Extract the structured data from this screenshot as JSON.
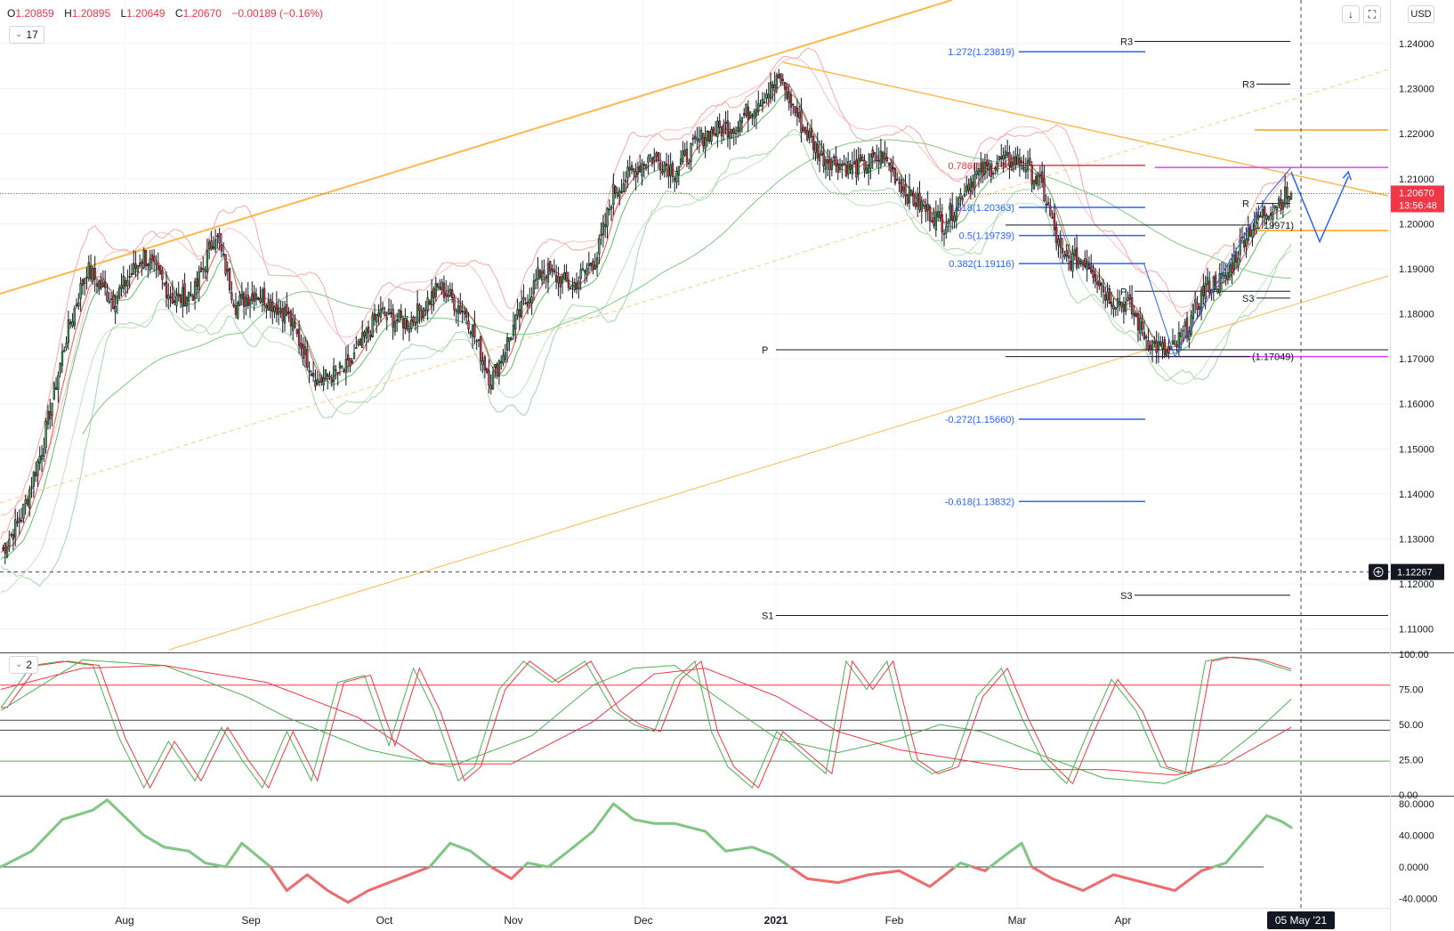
{
  "ohlc": {
    "o": "1.20859",
    "h": "1.20895",
    "l": "1.20649",
    "c": "1.20670",
    "chg": "−0.00189 (−0.16%)"
  },
  "toolbar": {
    "currency": "USD",
    "main_indicator": "17",
    "osc_indicator": "2"
  },
  "colors": {
    "up": "#4caf50",
    "down": "#f23645",
    "trend": "#ffb74d",
    "fib": "#2962ff",
    "magenta": "#e040fb"
  },
  "chart_data": [
    {
      "type": "candlestick",
      "pane": "main",
      "price_axis": {
        "ticks": [
          "1.24000",
          "1.23000",
          "1.22000",
          "1.21000",
          "1.20000",
          "1.19000",
          "1.18000",
          "1.17000",
          "1.16000",
          "1.15000",
          "1.14000",
          "1.13000",
          "1.12000",
          "1.11000"
        ],
        "range": [
          1.105,
          1.2485
        ]
      },
      "time_axis": {
        "ticks": [
          "Aug",
          "Sep",
          "Oct",
          "Nov",
          "Dec",
          "2021",
          "Feb",
          "Mar",
          "Apr"
        ],
        "current_date_label": "05 May '21"
      },
      "last_price": {
        "value": "1.20670",
        "countdown": "13:56:48"
      },
      "crosshair_price": "1.12267",
      "anchors": [
        [
          0,
          1.127
        ],
        [
          10,
          1.135
        ],
        [
          20,
          1.15
        ],
        [
          32,
          1.175
        ],
        [
          42,
          1.19
        ],
        [
          55,
          1.183
        ],
        [
          70,
          1.193
        ],
        [
          85,
          1.183
        ],
        [
          95,
          1.185
        ],
        [
          105,
          1.198
        ],
        [
          115,
          1.182
        ],
        [
          125,
          1.185
        ],
        [
          140,
          1.18
        ],
        [
          155,
          1.165
        ],
        [
          170,
          1.168
        ],
        [
          185,
          1.18
        ],
        [
          200,
          1.178
        ],
        [
          215,
          1.186
        ],
        [
          228,
          1.18
        ],
        [
          240,
          1.165
        ],
        [
          252,
          1.178
        ],
        [
          265,
          1.19
        ],
        [
          280,
          1.186
        ],
        [
          292,
          1.193
        ],
        [
          300,
          1.207
        ],
        [
          310,
          1.212
        ],
        [
          318,
          1.215
        ],
        [
          330,
          1.212
        ],
        [
          345,
          1.22
        ],
        [
          360,
          1.222
        ],
        [
          372,
          1.228
        ],
        [
          382,
          1.232
        ],
        [
          392,
          1.222
        ],
        [
          402,
          1.215
        ],
        [
          418,
          1.212
        ],
        [
          432,
          1.215
        ],
        [
          445,
          1.206
        ],
        [
          462,
          1.2
        ],
        [
          475,
          1.21
        ],
        [
          490,
          1.214
        ],
        [
          500,
          1.214
        ],
        [
          510,
          1.208
        ],
        [
          520,
          1.192
        ],
        [
          532,
          1.192
        ],
        [
          542,
          1.184
        ],
        [
          552,
          1.182
        ],
        [
          562,
          1.174
        ],
        [
          572,
          1.171
        ],
        [
          580,
          1.176
        ],
        [
          590,
          1.186
        ],
        [
          600,
          1.188
        ],
        [
          610,
          1.198
        ],
        [
          618,
          1.202
        ],
        [
          628,
          1.206
        ],
        [
          632,
          1.2067
        ]
      ],
      "fib_levels": [
        {
          "label": "1.272(1.23819)",
          "value": 1.23819
        },
        {
          "label": "0.786(1.21296)",
          "value": 1.21296
        },
        {
          "label": "0.618(1.20363)",
          "value": 1.20363
        },
        {
          "label": "0.5(1.19739)",
          "value": 1.19739
        },
        {
          "label": "0.382(1.19116)",
          "value": 1.19116
        },
        {
          "label": "-0.272(1.15660)",
          "value": 1.1566
        },
        {
          "label": "-0.618(1.13832)",
          "value": 1.13832
        }
      ],
      "pivot_levels": [
        {
          "label": "R3",
          "value": 1.2405,
          "span": "mid"
        },
        {
          "label": "R3",
          "value": 1.231,
          "span": "right"
        },
        {
          "label": "P",
          "value": 1.185,
          "span": "mid"
        },
        {
          "label": "S3",
          "value": 1.1835,
          "span": "right"
        },
        {
          "label": "P",
          "value": 1.172,
          "span": "wide"
        },
        {
          "label": "S3",
          "value": 1.1175,
          "span": "mid"
        },
        {
          "label": "S1",
          "value": 1.113,
          "span": "wide"
        },
        {
          "label": "R",
          "value": 1.2045,
          "span": "right"
        }
      ],
      "value_labels": [
        {
          "label": "(1.19971)",
          "value": 1.19971
        },
        {
          "label": "(1.17049)",
          "value": 1.17049
        }
      ],
      "projection": [
        [
          632,
          1.2115
        ],
        [
          646,
          1.196
        ],
        [
          660,
          1.2105
        ]
      ]
    },
    {
      "type": "line",
      "pane": "stochastic",
      "y_axis": {
        "ticks": [
          "100.00",
          "75.00",
          "50.00",
          "25.00",
          "0.00"
        ],
        "range": [
          0,
          100
        ]
      },
      "levels": [
        78,
        53,
        46,
        24
      ],
      "k_anchors": [
        [
          0,
          62
        ],
        [
          15,
          92
        ],
        [
          30,
          95
        ],
        [
          45,
          92
        ],
        [
          58,
          40
        ],
        [
          70,
          5
        ],
        [
          82,
          38
        ],
        [
          95,
          10
        ],
        [
          108,
          48
        ],
        [
          118,
          25
        ],
        [
          128,
          5
        ],
        [
          140,
          45
        ],
        [
          152,
          10
        ],
        [
          165,
          80
        ],
        [
          178,
          85
        ],
        [
          190,
          35
        ],
        [
          202,
          90
        ],
        [
          212,
          60
        ],
        [
          224,
          10
        ],
        [
          232,
          20
        ],
        [
          244,
          75
        ],
        [
          256,
          95
        ],
        [
          270,
          80
        ],
        [
          286,
          95
        ],
        [
          300,
          60
        ],
        [
          310,
          50
        ],
        [
          320,
          45
        ],
        [
          330,
          82
        ],
        [
          340,
          95
        ],
        [
          348,
          45
        ],
        [
          356,
          20
        ],
        [
          368,
          5
        ],
        [
          380,
          45
        ],
        [
          392,
          30
        ],
        [
          404,
          15
        ],
        [
          414,
          95
        ],
        [
          424,
          75
        ],
        [
          434,
          95
        ],
        [
          446,
          25
        ],
        [
          456,
          15
        ],
        [
          466,
          20
        ],
        [
          478,
          70
        ],
        [
          490,
          90
        ],
        [
          500,
          55
        ],
        [
          510,
          25
        ],
        [
          522,
          8
        ],
        [
          534,
          50
        ],
        [
          544,
          82
        ],
        [
          556,
          60
        ],
        [
          568,
          20
        ],
        [
          580,
          15
        ],
        [
          590,
          95
        ],
        [
          600,
          98
        ],
        [
          615,
          96
        ],
        [
          632,
          88
        ]
      ],
      "d_lag": 3,
      "slow_anchors": [
        [
          0,
          60
        ],
        [
          40,
          96
        ],
        [
          80,
          92
        ],
        [
          120,
          70
        ],
        [
          140,
          55
        ],
        [
          180,
          32
        ],
        [
          220,
          20
        ],
        [
          260,
          42
        ],
        [
          290,
          78
        ],
        [
          310,
          90
        ],
        [
          330,
          92
        ],
        [
          350,
          70
        ],
        [
          380,
          40
        ],
        [
          410,
          30
        ],
        [
          440,
          40
        ],
        [
          460,
          50
        ],
        [
          480,
          45
        ],
        [
          510,
          28
        ],
        [
          540,
          12
        ],
        [
          570,
          8
        ],
        [
          595,
          22
        ],
        [
          615,
          45
        ],
        [
          632,
          68
        ]
      ],
      "slow2_anchors": [
        [
          0,
          75
        ],
        [
          40,
          90
        ],
        [
          80,
          92
        ],
        [
          130,
          80
        ],
        [
          175,
          55
        ],
        [
          210,
          22
        ],
        [
          250,
          22
        ],
        [
          290,
          52
        ],
        [
          320,
          86
        ],
        [
          345,
          90
        ],
        [
          380,
          70
        ],
        [
          410,
          45
        ],
        [
          440,
          32
        ],
        [
          470,
          25
        ],
        [
          500,
          18
        ],
        [
          540,
          18
        ],
        [
          575,
          14
        ],
        [
          600,
          22
        ],
        [
          632,
          48
        ]
      ]
    },
    {
      "type": "line",
      "pane": "momentum",
      "y_axis": {
        "ticks": [
          "80.0000",
          "40.0000",
          "0.0000",
          "-40.0000"
        ],
        "range": [
          -52,
          88
        ]
      },
      "zero_line": 0,
      "anchors": [
        [
          0,
          0
        ],
        [
          15,
          20
        ],
        [
          30,
          60
        ],
        [
          45,
          72
        ],
        [
          52,
          85
        ],
        [
          60,
          65
        ],
        [
          70,
          40
        ],
        [
          80,
          25
        ],
        [
          92,
          20
        ],
        [
          100,
          5
        ],
        [
          110,
          0
        ],
        [
          118,
          30
        ],
        [
          125,
          15
        ],
        [
          132,
          0
        ],
        [
          140,
          -30
        ],
        [
          150,
          -10
        ],
        [
          160,
          -30
        ],
        [
          170,
          -45
        ],
        [
          180,
          -30
        ],
        [
          190,
          -20
        ],
        [
          200,
          -10
        ],
        [
          210,
          0
        ],
        [
          220,
          30
        ],
        [
          230,
          20
        ],
        [
          240,
          0
        ],
        [
          250,
          -15
        ],
        [
          258,
          5
        ],
        [
          268,
          0
        ],
        [
          278,
          20
        ],
        [
          290,
          45
        ],
        [
          300,
          80
        ],
        [
          310,
          60
        ],
        [
          320,
          55
        ],
        [
          330,
          55
        ],
        [
          345,
          45
        ],
        [
          355,
          20
        ],
        [
          368,
          25
        ],
        [
          378,
          15
        ],
        [
          395,
          -15
        ],
        [
          410,
          -20
        ],
        [
          425,
          -10
        ],
        [
          440,
          -5
        ],
        [
          455,
          -25
        ],
        [
          470,
          5
        ],
        [
          482,
          -5
        ],
        [
          492,
          15
        ],
        [
          500,
          30
        ],
        [
          505,
          0
        ],
        [
          515,
          -15
        ],
        [
          530,
          -30
        ],
        [
          545,
          -10
        ],
        [
          560,
          -20
        ],
        [
          575,
          -30
        ],
        [
          588,
          -5
        ],
        [
          600,
          5
        ],
        [
          610,
          35
        ],
        [
          620,
          65
        ],
        [
          627,
          58
        ],
        [
          632,
          50
        ]
      ]
    }
  ]
}
